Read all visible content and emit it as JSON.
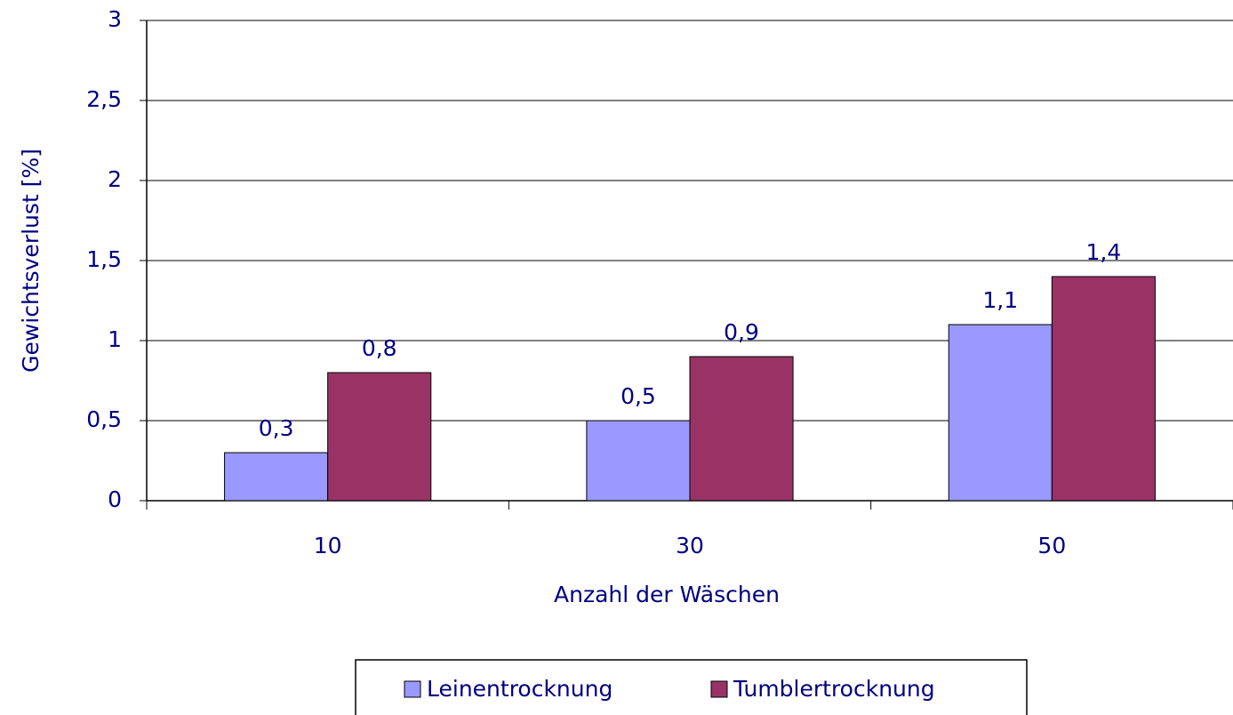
{
  "chart_data": {
    "type": "bar",
    "categories": [
      "10",
      "30",
      "50"
    ],
    "series": [
      {
        "name": "Leinentrocknung",
        "color": "#9999ff",
        "values": [
          0.3,
          0.5,
          1.1
        ],
        "value_labels": [
          "0,3",
          "0,5",
          "1,1"
        ]
      },
      {
        "name": "Tumblertrocknung",
        "color": "#993366",
        "values": [
          0.8,
          0.9,
          1.4
        ],
        "value_labels": [
          "0,8",
          "0,9",
          "1,4"
        ]
      }
    ],
    "ylim": [
      0,
      3
    ],
    "yticks": [
      0,
      {
        "value": 0.5,
        "label": "0,5"
      },
      1,
      {
        "value": 1.5,
        "label": "1,5"
      },
      2,
      {
        "value": 2.5,
        "label": "2,5"
      },
      3
    ],
    "xlabel": "Anzahl der Wäschen",
    "ylabel": "Gewichtsverlust [%]",
    "grid": true,
    "legend": "bottom"
  }
}
